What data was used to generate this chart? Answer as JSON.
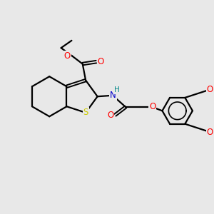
{
  "background_color": "#e8e8e8",
  "bond_color": "#000000",
  "S_color": "#cccc00",
  "N_color": "#0000cc",
  "O_color": "#ff0000",
  "H_color": "#008888",
  "figsize": [
    3.0,
    3.0
  ],
  "dpi": 100,
  "xlim": [
    0,
    10
  ],
  "ylim": [
    0,
    10
  ]
}
